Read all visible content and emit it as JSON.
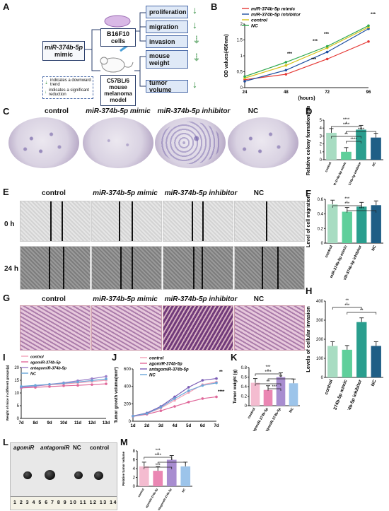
{
  "panels": {
    "A": "A",
    "B": "B",
    "C": "C",
    "D": "D",
    "E": "E",
    "F": "F",
    "G": "G",
    "H": "H",
    "I": "I",
    "J": "J",
    "K": "K",
    "L": "L",
    "M": "M"
  },
  "groups": {
    "control": "control",
    "mimic": "miR-374b-5p mimic",
    "inhibitor": "miR-374b-5p inhibitor",
    "nc": "NC"
  },
  "panelA": {
    "mimic_line1": "miR-374b-5p",
    "mimic_line2": "mimic",
    "cells_line1": "B16F10",
    "cells_line2": "cells",
    "model_line1": "C57BL/6",
    "model_line2": "mouse",
    "model_line3": "melanoma",
    "model_line4": "model",
    "outcomes": [
      "proliferation",
      "migration",
      "invasion",
      "mouse weight",
      "tumor volume"
    ],
    "legend_trend": "indicates a downward trend",
    "legend_reduction": "indicates a significant reduction"
  },
  "panelE": {
    "row0": "0 h",
    "row24": "24 h"
  },
  "panelL": {
    "agomir": "agomiR",
    "antagomir": "antagomiR",
    "nc": "NC",
    "control": "control",
    "ruler": "1 2 3 4 5 6 7 8 9 10 11 12 13 14"
  },
  "chart_data": [
    {
      "panel": "B",
      "type": "line",
      "x": [
        24,
        48,
        72,
        96
      ],
      "xlabel": "(hours)",
      "ylabel": "OD values(450nm)",
      "ylim": [
        0,
        2.0
      ],
      "yticks": [
        0,
        0.5,
        1.0,
        1.5,
        2.0
      ],
      "series": [
        {
          "name": "miR-374b-5p mimic",
          "color": "#e53935",
          "values": [
            0.25,
            0.42,
            0.9,
            1.45
          ]
        },
        {
          "name": "miR-374b-5p inhibitor",
          "color": "#1e4fa0",
          "values": [
            0.2,
            0.55,
            1.12,
            1.85
          ]
        },
        {
          "name": "control",
          "color": "#d6c21a",
          "values": [
            0.3,
            0.7,
            1.25,
            1.9
          ]
        },
        {
          "name": "NC",
          "color": "#2fa84f",
          "values": [
            0.35,
            0.8,
            1.3,
            1.95
          ]
        }
      ],
      "annotations": [
        "***",
        "***",
        "***",
        "***",
        "***"
      ]
    },
    {
      "panel": "D",
      "type": "bar",
      "categories": [
        "control",
        "miR-374b-5p mimic",
        "miR-374b-5p inhibitor",
        "NC"
      ],
      "values": [
        3.4,
        1.0,
        3.8,
        2.8
      ],
      "colors": [
        "#a8dcc2",
        "#5fcf9b",
        "#2a9e8e",
        "#1f5e86"
      ],
      "ylabel": "Relative colony formation rate",
      "ylim": [
        0,
        5
      ],
      "yticks": [
        0,
        1,
        2,
        3,
        4,
        5
      ],
      "sig": [
        "****",
        "****",
        "****",
        "**",
        "****"
      ]
    },
    {
      "panel": "F",
      "type": "bar",
      "categories": [
        "control",
        "miR-374b-5p mimic",
        "miR-374b-5p inhibitor",
        "NC"
      ],
      "values": [
        0.53,
        0.43,
        0.5,
        0.52
      ],
      "colors": [
        "#a8dcc2",
        "#5fcf9b",
        "#2a9e8e",
        "#1f5e86"
      ],
      "ylabel": "Level of cell migration",
      "ylim": [
        0,
        0.6
      ],
      "yticks": [
        0,
        0.2,
        0.4,
        0.6
      ],
      "sig": [
        "***",
        "***",
        "***"
      ]
    },
    {
      "panel": "H",
      "type": "bar",
      "categories": [
        "control",
        "miR-374b-5p mimic",
        "miR-374b-5p inhibitor",
        "NC"
      ],
      "values": [
        165,
        145,
        290,
        165
      ],
      "colors": [
        "#a8dcc2",
        "#5fcf9b",
        "#2a9e8e",
        "#1f5e86"
      ],
      "ylabel": "Levels of cellular invasion",
      "ylim": [
        0,
        400
      ],
      "yticks": [
        0,
        100,
        200,
        300,
        400
      ],
      "sig": [
        "**",
        "***",
        "**"
      ]
    },
    {
      "panel": "I",
      "type": "line",
      "x": [
        "7d",
        "8d",
        "9d",
        "10d",
        "11d",
        "12d",
        "13d"
      ],
      "ylabel": "Weight of mice in different groups(g)",
      "ylim": [
        0,
        20
      ],
      "yticks": [
        0,
        5,
        10,
        15,
        20
      ],
      "series": [
        {
          "name": "control",
          "color": "#f2a2b8",
          "values": [
            12.5,
            12.8,
            13.2,
            13.5,
            14.0,
            14.5,
            15.0
          ]
        },
        {
          "name": "agomiR-374b-5p",
          "color": "#e0689a",
          "values": [
            12.0,
            12.2,
            12.5,
            12.8,
            13.0,
            13.3,
            13.6
          ]
        },
        {
          "name": "antagomiR-374b-5p",
          "color": "#9a7ec9",
          "values": [
            12.3,
            12.7,
            13.4,
            14.0,
            14.8,
            15.6,
            16.5
          ]
        },
        {
          "name": "NC",
          "color": "#6aa6d8",
          "values": [
            12.6,
            13.0,
            13.4,
            13.8,
            14.3,
            14.9,
            15.5
          ]
        }
      ]
    },
    {
      "panel": "J",
      "type": "line",
      "x": [
        "1d",
        "2d",
        "3d",
        "4d",
        "5d",
        "6d",
        "7d"
      ],
      "ylabel": "Tumor growth volume(mm³)",
      "ylim": [
        0,
        600
      ],
      "yticks": [
        0,
        200,
        400,
        600
      ],
      "series": [
        {
          "name": "control",
          "color": "#f2a2b8",
          "values": [
            60,
            90,
            150,
            240,
            330,
            420,
            450
          ]
        },
        {
          "name": "agomiR-374b-5p",
          "color": "#e0689a",
          "values": [
            55,
            80,
            120,
            170,
            220,
            260,
            280
          ]
        },
        {
          "name": "antagomiR-374b-5p",
          "color": "#7a5bb5",
          "values": [
            60,
            95,
            170,
            280,
            390,
            470,
            490
          ]
        },
        {
          "name": "NC",
          "color": "#6aa6d8",
          "values": [
            58,
            88,
            160,
            260,
            350,
            410,
            440
          ]
        }
      ],
      "annotations": [
        "**",
        "****"
      ]
    },
    {
      "panel": "K",
      "type": "bar",
      "categories": [
        "control",
        "agomiR-374b-5p",
        "antagomiR-374b-5p",
        "NC"
      ],
      "values": [
        0.48,
        0.33,
        0.6,
        0.47
      ],
      "colors": [
        "#f4bcd0",
        "#ea86b3",
        "#a88dd0",
        "#9cc4ea"
      ],
      "ylabel": "Tumor weight (g)",
      "ylim": [
        0,
        0.8
      ],
      "yticks": [
        0,
        0.2,
        0.4,
        0.6,
        0.8
      ],
      "sig": [
        "***",
        "****",
        "**",
        "**",
        "***"
      ]
    },
    {
      "panel": "M",
      "type": "bar",
      "categories": [
        "control",
        "agomiR-374b-5p",
        "antagomiR-374b-5p",
        "NC"
      ],
      "values": [
        4.5,
        3.5,
        6.0,
        4.5
      ],
      "colors": [
        "#f4bcd0",
        "#ea86b3",
        "#a88dd0",
        "#9cc4ea"
      ],
      "ylabel": "Relative tumor volume",
      "ylim": [
        0,
        8
      ],
      "yticks": [
        0,
        2,
        4,
        6,
        8
      ],
      "sig": [
        "***",
        "****",
        "*",
        "***"
      ]
    }
  ]
}
